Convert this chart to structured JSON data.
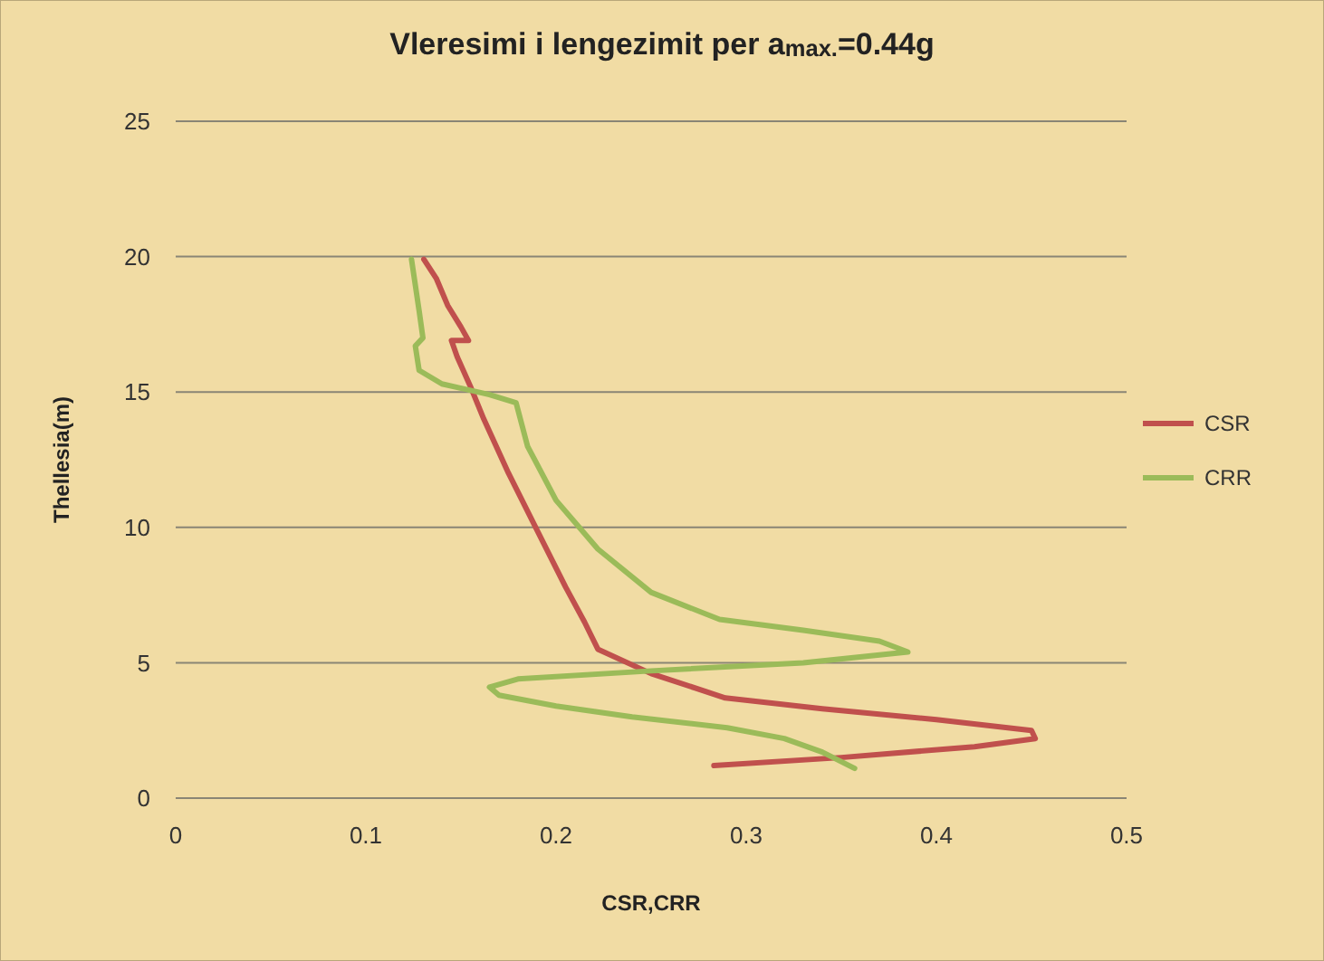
{
  "chart_data": {
    "type": "line",
    "title": "Vleresimi i lengezimit per a$_{max.}$=0.44g",
    "xlabel": "CSR,CRR",
    "ylabel": "Thellesia(m)",
    "xlim": [
      0,
      0.5
    ],
    "xticks": [
      0,
      0.1,
      0.2,
      0.3,
      0.4,
      0.5
    ],
    "ylim": [
      0,
      25
    ],
    "yticks": [
      0,
      5,
      10,
      15,
      20,
      25
    ],
    "grid": "y",
    "legend": "right",
    "series": [
      {
        "name": "CSR",
        "color": "#c0504d",
        "x": [
          0.283,
          0.35,
          0.42,
          0.452,
          0.45,
          0.4,
          0.34,
          0.289,
          0.25,
          0.222,
          0.215,
          0.205,
          0.19,
          0.175,
          0.162,
          0.155,
          0.148,
          0.145,
          0.154,
          0.15,
          0.143,
          0.137,
          0.1305
        ],
        "values": [
          1.2,
          1.5,
          1.9,
          2.2,
          2.5,
          2.9,
          3.3,
          3.7,
          4.6,
          5.5,
          6.5,
          7.8,
          9.9,
          12,
          14,
          15.2,
          16.3,
          16.9,
          16.9,
          17.4,
          18.2,
          19.2,
          19.9
        ]
      },
      {
        "name": "CRR",
        "color": "#9bbb59",
        "x": [
          0.357,
          0.34,
          0.32,
          0.29,
          0.24,
          0.2,
          0.17,
          0.165,
          0.18,
          0.25,
          0.33,
          0.385,
          0.37,
          0.33,
          0.286,
          0.25,
          0.222,
          0.2,
          0.185,
          0.179,
          0.165,
          0.14,
          0.128,
          0.126,
          0.13,
          0.128,
          0.124
        ],
        "values": [
          1.1,
          1.7,
          2.2,
          2.6,
          3.0,
          3.4,
          3.8,
          4.1,
          4.4,
          4.7,
          5.0,
          5.4,
          5.8,
          6.2,
          6.6,
          7.6,
          9.2,
          11,
          13,
          14.6,
          14.9,
          15.3,
          15.8,
          16.7,
          17,
          18,
          19.9
        ]
      }
    ]
  }
}
